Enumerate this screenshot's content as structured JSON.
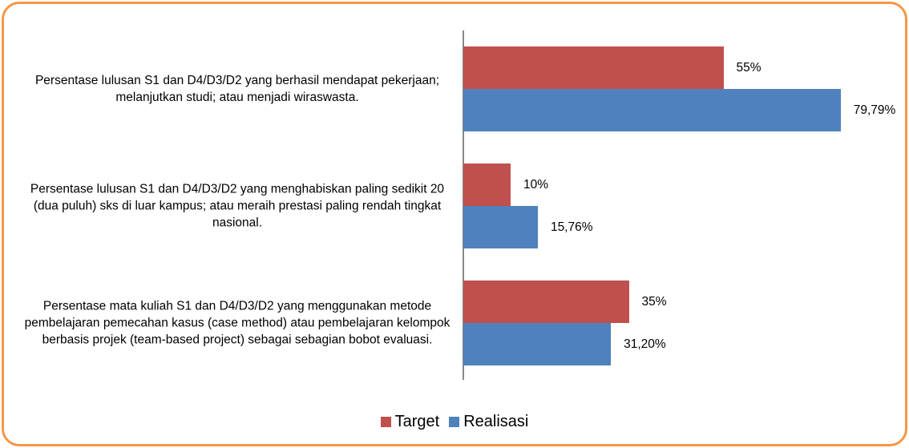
{
  "chart_data": {
    "type": "bar",
    "orientation": "horizontal",
    "categories": [
      "Persentase lulusan S1 dan D4/D3/D2 yang berhasil mendapat pekerjaan; melanjutkan studi; atau menjadi wiraswasta.",
      "Persentase lulusan S1 dan D4/D3/D2 yang menghabiskan paling sedikit 20 (dua puluh) sks di luar kampus; atau meraih prestasi paling rendah tingkat nasional.",
      "Persentase mata kuliah S1 dan D4/D3/D2 yang menggunakan metode pembelajaran pemecahan kasus (case method) atau pembelajaran kelompok berbasis projek (team-based project) sebagai sebagian bobot evaluasi."
    ],
    "series": [
      {
        "name": "Target",
        "color": "#c0504d",
        "values": [
          55,
          10,
          35
        ],
        "value_labels": [
          "55%",
          "10%",
          "35%"
        ]
      },
      {
        "name": "Realisasi",
        "color": "#4f81bd",
        "values": [
          79.79,
          15.76,
          31.2
        ],
        "value_labels": [
          "79,79%",
          "15,76%",
          "31,20%"
        ]
      }
    ],
    "legend": "bottom"
  }
}
